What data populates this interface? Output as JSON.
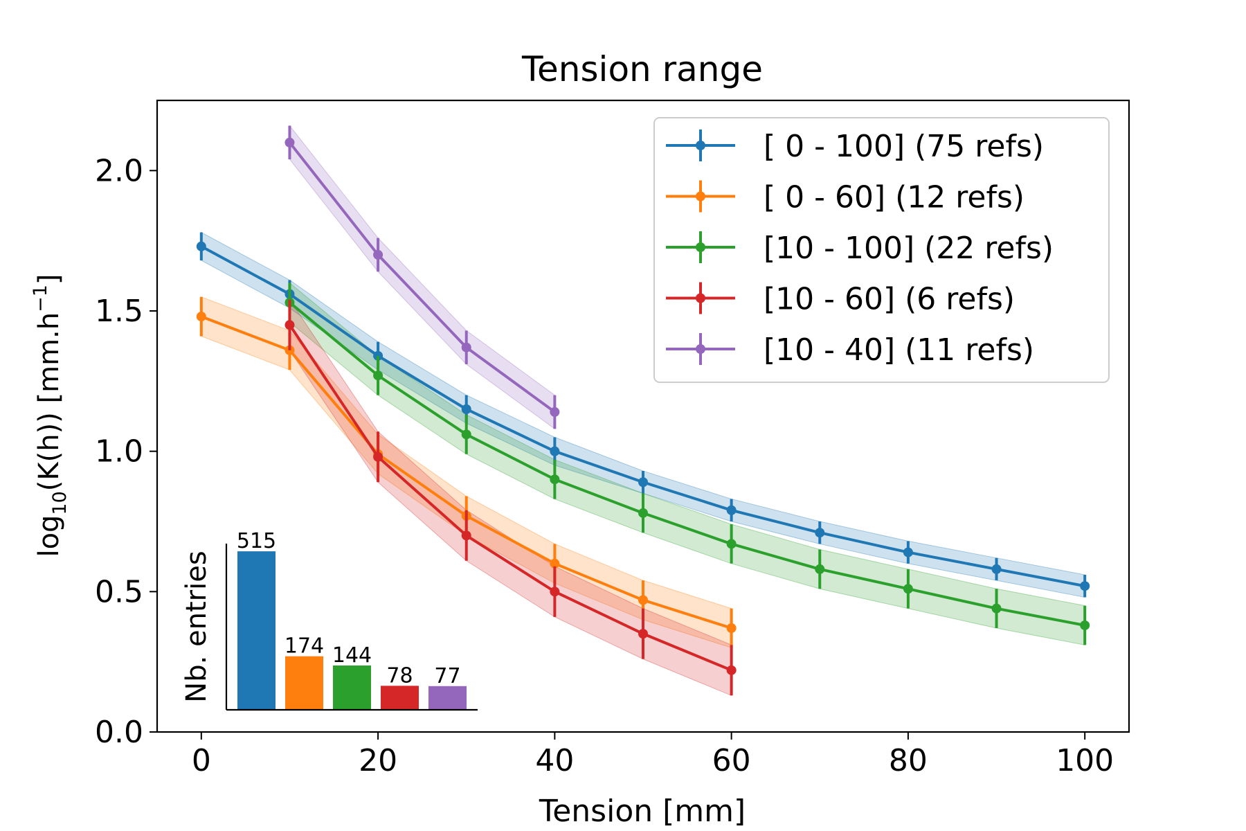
{
  "chart_data": [
    {
      "type": "line",
      "title": "Tension range",
      "xlabel": "Tension [mm]",
      "ylabel_main": "log",
      "ylabel_sub": "10",
      "ylabel_mid": "(K(h)) [mm.h",
      "ylabel_sup": "−1",
      "ylabel_end": "]",
      "xlim": [
        -5,
        105
      ],
      "ylim": [
        0,
        2.25
      ],
      "xticks": [
        0,
        20,
        40,
        60,
        80,
        100
      ],
      "xtick_labels": [
        "0",
        "20",
        "40",
        "60",
        "80",
        "100"
      ],
      "yticks": [
        0.0,
        0.5,
        1.0,
        1.5,
        2.0
      ],
      "ytick_labels": [
        "0.0",
        "0.5",
        "1.0",
        "1.5",
        "2.0"
      ],
      "grid": false,
      "legend_position": "top-right",
      "series": [
        {
          "name": "[ 0 - 100] (75 refs)",
          "color": "#1f77b4",
          "x": [
            0,
            10,
            20,
            30,
            40,
            50,
            60,
            70,
            80,
            90,
            100
          ],
          "y": [
            1.73,
            1.56,
            1.34,
            1.15,
            1.0,
            0.89,
            0.79,
            0.71,
            0.64,
            0.58,
            0.52
          ],
          "err": [
            0.05,
            0.05,
            0.05,
            0.05,
            0.05,
            0.04,
            0.04,
            0.04,
            0.04,
            0.04,
            0.04
          ],
          "band": [
            0.05,
            0.05,
            0.05,
            0.05,
            0.05,
            0.04,
            0.04,
            0.04,
            0.04,
            0.04,
            0.04
          ]
        },
        {
          "name": "[ 0 -  60] (12 refs)",
          "color": "#ff7f0e",
          "x": [
            0,
            10,
            20,
            30,
            40,
            50,
            60
          ],
          "y": [
            1.48,
            1.36,
            0.99,
            0.77,
            0.6,
            0.47,
            0.37
          ],
          "err": [
            0.07,
            0.07,
            0.07,
            0.07,
            0.07,
            0.07,
            0.07
          ],
          "band": [
            0.07,
            0.07,
            0.07,
            0.07,
            0.07,
            0.07,
            0.07
          ]
        },
        {
          "name": "[10 - 100] (22 refs)",
          "color": "#2ca02c",
          "x": [
            10,
            20,
            30,
            40,
            50,
            60,
            70,
            80,
            90,
            100
          ],
          "y": [
            1.53,
            1.27,
            1.06,
            0.9,
            0.78,
            0.67,
            0.58,
            0.51,
            0.44,
            0.38
          ],
          "err": [
            0.07,
            0.07,
            0.07,
            0.07,
            0.07,
            0.07,
            0.07,
            0.07,
            0.07,
            0.07
          ],
          "band": [
            0.07,
            0.07,
            0.07,
            0.07,
            0.07,
            0.07,
            0.07,
            0.07,
            0.07,
            0.07
          ]
        },
        {
          "name": "[10 -  60] (6 refs)",
          "color": "#d62728",
          "x": [
            10,
            20,
            30,
            40,
            50,
            60
          ],
          "y": [
            1.45,
            0.98,
            0.7,
            0.5,
            0.35,
            0.22
          ],
          "err": [
            0.09,
            0.09,
            0.09,
            0.09,
            0.09,
            0.09
          ],
          "band": [
            0.09,
            0.09,
            0.09,
            0.09,
            0.09,
            0.09
          ]
        },
        {
          "name": "[10 -  40] (11 refs)",
          "color": "#9467bd",
          "x": [
            10,
            20,
            30,
            40
          ],
          "y": [
            2.1,
            1.7,
            1.37,
            1.14
          ],
          "err": [
            0.06,
            0.06,
            0.06,
            0.06
          ],
          "band": [
            0.06,
            0.06,
            0.06,
            0.06
          ]
        }
      ]
    },
    {
      "type": "bar",
      "ylabel": "Nb. entries",
      "categories": [
        "[ 0 - 100]",
        "[ 0 -  60]",
        "[10 - 100]",
        "[10 -  60]",
        "[10 -  40]"
      ],
      "values": [
        515,
        174,
        144,
        78,
        77
      ],
      "labels": [
        "515",
        "174",
        "144",
        "78",
        "77"
      ],
      "colors": [
        "#1f77b4",
        "#ff7f0e",
        "#2ca02c",
        "#d62728",
        "#9467bd"
      ],
      "ylim": [
        0,
        540
      ],
      "position": "bottom-left inset"
    }
  ]
}
